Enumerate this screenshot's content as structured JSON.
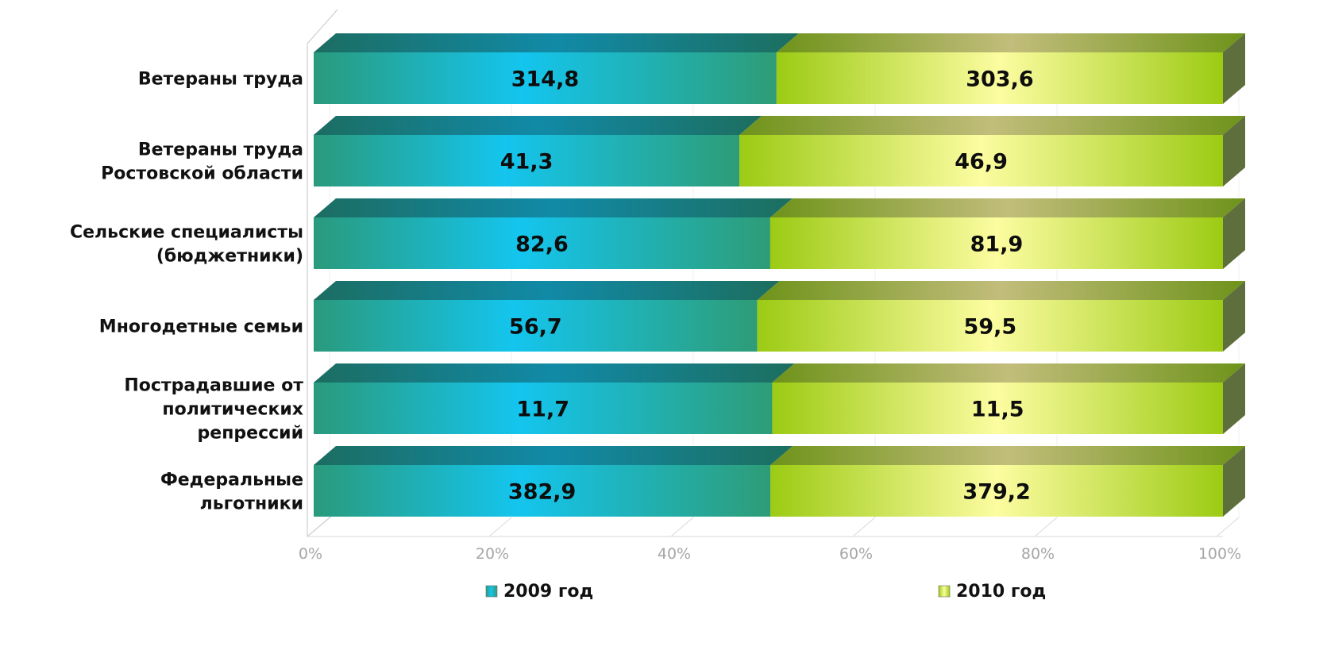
{
  "chart_data": {
    "type": "bar",
    "orientation": "horizontal",
    "stacked": "percent",
    "style": "3d",
    "categories": [
      [
        "Ветераны труда"
      ],
      [
        "Ветераны труда",
        "Ростовской области"
      ],
      [
        "Сельские специалисты",
        "(бюджетники)"
      ],
      [
        "Многодетные семьи"
      ],
      [
        "Пострадавшие от",
        "политических",
        "репрессий"
      ],
      [
        "Федеральные",
        "льготники"
      ]
    ],
    "series": [
      {
        "name": "2009 год",
        "color": "#19b8d6",
        "values": [
          314.8,
          41.3,
          82.6,
          56.7,
          11.7,
          382.9
        ],
        "labels": [
          "314,8",
          "41,3",
          "82,6",
          "56,7",
          "11,7",
          "382,9"
        ]
      },
      {
        "name": "2010 год",
        "color": "#a6cf1a",
        "values": [
          303.6,
          46.9,
          81.9,
          59.5,
          11.5,
          379.2
        ],
        "labels": [
          "303,6",
          "46,9",
          "81,9",
          "59,5",
          "11,5",
          "379,2"
        ]
      }
    ],
    "x_ticks": [
      "0%",
      "20%",
      "40%",
      "60%",
      "80%",
      "100%"
    ],
    "xlim": [
      0,
      100
    ],
    "grid": true,
    "legend": "bottom",
    "title": "",
    "xlabel": "",
    "ylabel": ""
  }
}
